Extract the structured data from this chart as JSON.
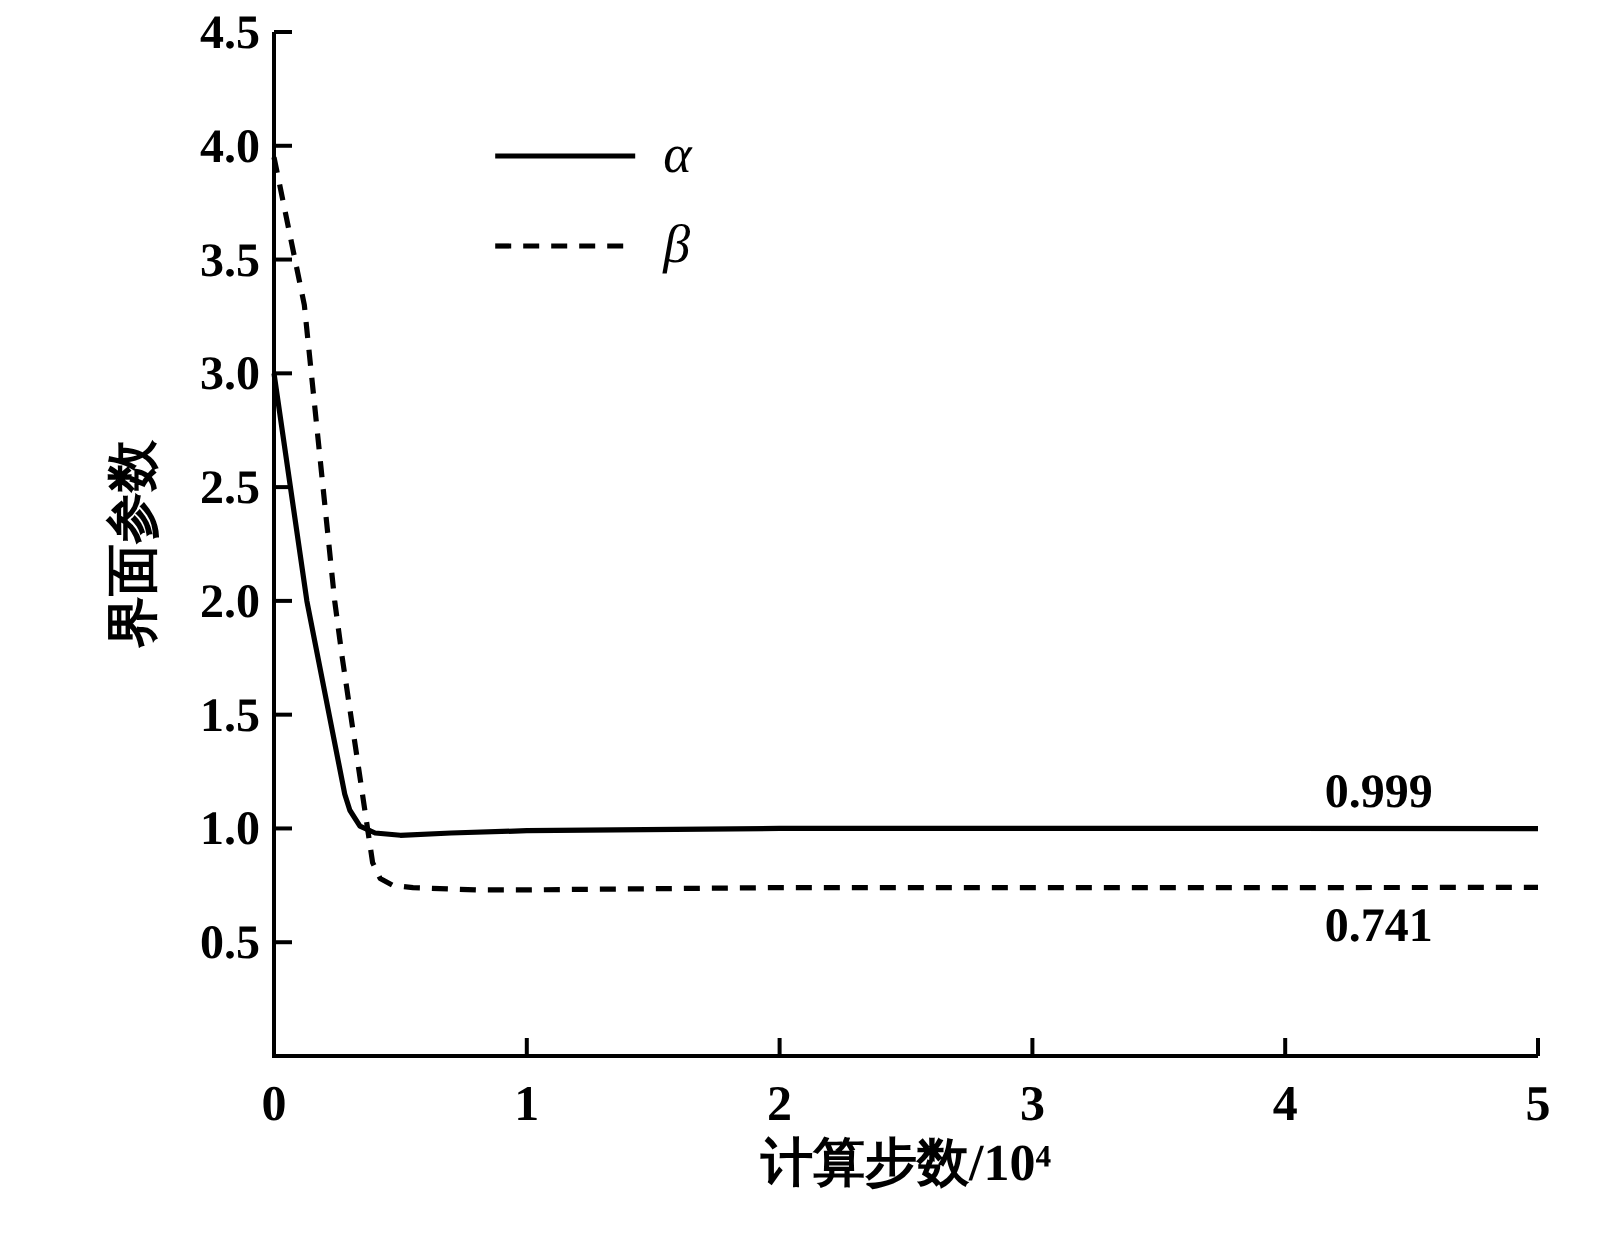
{
  "chart_data": {
    "type": "line",
    "xlabel": "计算步数/10⁴",
    "ylabel": "界面参数",
    "xlim": [
      0,
      5
    ],
    "xticks": [
      0,
      1,
      2,
      3,
      4,
      5
    ],
    "ylim": [
      0,
      4.5
    ],
    "yticks": [
      0.5,
      {
        "value": 1,
        "label": "1.0"
      },
      1.5,
      {
        "value": 2,
        "label": "2.0"
      },
      2.5,
      {
        "value": 3,
        "label": "3.0"
      },
      3.5,
      {
        "value": 4,
        "label": "4.0"
      },
      4.5
    ],
    "legend": "top left",
    "series": [
      {
        "name": "α",
        "color": "#000000",
        "line_style": "solid",
        "x": [
          0,
          0.13,
          0.28,
          0.3,
          0.34,
          0.4,
          0.5,
          0.7,
          1.0,
          2.0,
          3.0,
          4.0,
          5.0
        ],
        "values": [
          3.0,
          2.0,
          1.15,
          1.08,
          1.01,
          0.98,
          0.97,
          0.98,
          0.99,
          1.0,
          1.0,
          1.0,
          0.999
        ]
      },
      {
        "name": "β",
        "color": "#000000",
        "line_style": "dashed",
        "x": [
          0,
          0.12,
          0.24,
          0.27,
          0.37,
          0.39,
          0.42,
          0.47,
          0.55,
          0.8,
          1.0,
          2.0,
          3.0,
          4.0,
          5.0
        ],
        "values": [
          3.95,
          3.3,
          2.0,
          1.75,
          1.0,
          0.85,
          0.78,
          0.75,
          0.74,
          0.73,
          0.73,
          0.74,
          0.74,
          0.74,
          0.741
        ]
      }
    ],
    "annotations": [
      {
        "text": "0.999",
        "x": 4.37,
        "y": 0.999
      },
      {
        "text": "0.741",
        "x": 4.37,
        "y": 0.741
      }
    ]
  }
}
